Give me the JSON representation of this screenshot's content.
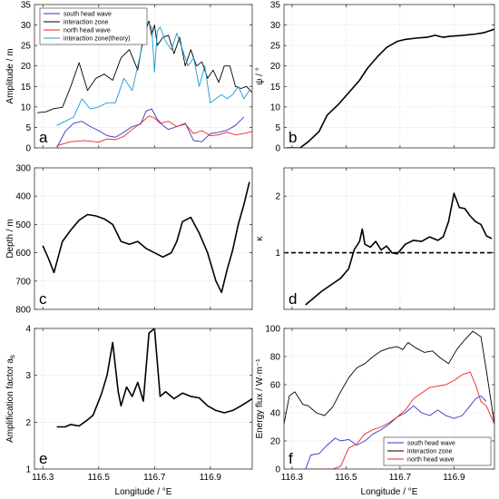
{
  "chart_data": [
    {
      "id": "a",
      "panel_letter": "a",
      "type": "line",
      "ylabel": "Amplitude / m",
      "xlim": [
        116.27,
        117.05
      ],
      "ylim": [
        0,
        35
      ],
      "yticks": [
        0,
        5,
        10,
        15,
        20,
        25,
        30,
        35
      ],
      "xticks": [
        116.3,
        116.5,
        116.7,
        116.9
      ],
      "show_xticklabels": false,
      "grid": true,
      "legend": "top-left",
      "series": [
        {
          "name": "south head wave",
          "color": "#3333cc",
          "x": [
            116.35,
            116.38,
            116.41,
            116.44,
            116.47,
            116.5,
            116.53,
            116.56,
            116.59,
            116.62,
            116.65,
            116.67,
            116.69,
            116.71,
            116.73,
            116.75,
            116.78,
            116.81,
            116.84,
            116.87,
            116.9,
            116.93,
            116.96,
            116.99,
            117.02
          ],
          "y": [
            0,
            4,
            6,
            6.5,
            5.2,
            4.2,
            3.0,
            2.6,
            3.8,
            5.2,
            5.8,
            9.0,
            9.5,
            7.0,
            5.5,
            4.5,
            5.2,
            6.0,
            1.8,
            1.5,
            3.5,
            3.8,
            4.3,
            5.5,
            7.5
          ]
        },
        {
          "name": "interaction zone",
          "color": "#000000",
          "x": [
            116.28,
            116.31,
            116.34,
            116.37,
            116.4,
            116.43,
            116.46,
            116.49,
            116.52,
            116.55,
            116.58,
            116.61,
            116.64,
            116.66,
            116.68,
            116.69,
            116.7,
            116.71,
            116.73,
            116.75,
            116.77,
            116.79,
            116.81,
            116.83,
            116.85,
            116.87,
            116.89,
            116.91,
            116.93,
            116.95,
            116.97,
            116.99,
            117.01,
            117.03,
            117.05
          ],
          "y": [
            8.6,
            8.8,
            9.6,
            9.9,
            15,
            20.8,
            14,
            17,
            18,
            16.5,
            22,
            24,
            19,
            27,
            31,
            27.5,
            30,
            25,
            27,
            27.5,
            23,
            27,
            20,
            24,
            20,
            21,
            17,
            19,
            16,
            20,
            20,
            15,
            14.5,
            15,
            13.5
          ]
        },
        {
          "name": "north head wave",
          "color": "#ee2222",
          "x": [
            116.35,
            116.4,
            116.45,
            116.5,
            116.53,
            116.56,
            116.59,
            116.62,
            116.65,
            116.68,
            116.7,
            116.72,
            116.75,
            116.78,
            116.81,
            116.84,
            116.87,
            116.9,
            116.93,
            116.96,
            116.99,
            117.02,
            117.05
          ],
          "y": [
            0.5,
            1.5,
            1.8,
            1.4,
            2.2,
            2.0,
            2.8,
            4.5,
            6.0,
            7.8,
            7.3,
            6.0,
            6.5,
            5.2,
            5.8,
            3.5,
            4.2,
            3.0,
            3.2,
            3.8,
            3.2,
            3.5,
            4.0
          ]
        },
        {
          "name": "interaction zone(theory)",
          "color": "#1a9ad6",
          "x": [
            116.35,
            116.38,
            116.41,
            116.44,
            116.47,
            116.5,
            116.53,
            116.56,
            116.59,
            116.62,
            116.64,
            116.66,
            116.67,
            116.69,
            116.7,
            116.71,
            116.72,
            116.74,
            116.76,
            116.78,
            116.8,
            116.82,
            116.84,
            116.86,
            116.88,
            116.9,
            116.92,
            116.94,
            116.96,
            116.98,
            117.0,
            117.02,
            117.04
          ],
          "y": [
            5.5,
            6.5,
            7.5,
            12,
            9.5,
            10,
            11,
            11,
            17,
            14,
            20,
            26,
            31,
            29.5,
            18.5,
            28.5,
            29.5,
            26,
            24,
            28,
            24,
            20,
            22,
            15,
            20,
            11,
            12,
            13,
            12,
            13,
            15,
            12,
            14
          ]
        }
      ]
    },
    {
      "id": "b",
      "panel_letter": "b",
      "type": "line",
      "ylabel": "ψ / °",
      "xlim": [
        116.27,
        117.05
      ],
      "ylim": [
        0,
        35
      ],
      "yticks": [
        0,
        5,
        10,
        15,
        20,
        25,
        30,
        35
      ],
      "xticks": [
        116.3,
        116.5,
        116.7,
        116.9
      ],
      "show_xticklabels": false,
      "grid": true,
      "series": [
        {
          "color": "#000000",
          "x": [
            116.28,
            116.33,
            116.36,
            116.4,
            116.43,
            116.47,
            116.51,
            116.55,
            116.58,
            116.62,
            116.65,
            116.69,
            116.72,
            116.76,
            116.8,
            116.83,
            116.86,
            116.89,
            116.92,
            116.95,
            116.98,
            117.01,
            117.05
          ],
          "y": [
            0,
            0,
            1.5,
            4,
            8,
            10.5,
            13.5,
            16.5,
            19.5,
            22.5,
            24.5,
            26,
            26.5,
            26.8,
            27,
            27.5,
            27,
            27.3,
            27.4,
            27.6,
            27.8,
            28.1,
            29
          ]
        }
      ]
    },
    {
      "id": "c",
      "panel_letter": "c",
      "type": "line",
      "ylabel": "Depth / m",
      "xlim": [
        116.27,
        117.05
      ],
      "ylim": [
        800,
        300
      ],
      "yticks": [
        300,
        400,
        500,
        600,
        700,
        800
      ],
      "xticks": [
        116.3,
        116.5,
        116.7,
        116.9
      ],
      "show_xticklabels": false,
      "grid": true,
      "series": [
        {
          "color": "#000000",
          "x": [
            116.3,
            116.32,
            116.34,
            116.37,
            116.4,
            116.43,
            116.46,
            116.49,
            116.52,
            116.55,
            116.58,
            116.61,
            116.64,
            116.67,
            116.7,
            116.73,
            116.76,
            116.78,
            116.8,
            116.83,
            116.86,
            116.89,
            116.92,
            116.94,
            116.96,
            116.98,
            117.0,
            117.02,
            117.04
          ],
          "y": [
            575,
            620,
            670,
            560,
            520,
            485,
            465,
            470,
            480,
            500,
            560,
            570,
            560,
            585,
            600,
            615,
            600,
            560,
            490,
            475,
            530,
            600,
            700,
            740,
            660,
            590,
            500,
            430,
            350
          ]
        }
      ]
    },
    {
      "id": "d",
      "panel_letter": "d",
      "type": "line",
      "ylabel": "κ",
      "xlim": [
        116.27,
        117.05
      ],
      "ylim": [
        0,
        2.5
      ],
      "yticks": [
        1,
        2
      ],
      "xticks": [
        116.3,
        116.5,
        116.7,
        116.9
      ],
      "show_xticklabels": false,
      "grid": true,
      "reference_line": {
        "y": 1,
        "style": "dashed"
      },
      "series": [
        {
          "color": "#000000",
          "x": [
            116.35,
            116.38,
            116.41,
            116.45,
            116.48,
            116.51,
            116.53,
            116.55,
            116.56,
            116.57,
            116.59,
            116.61,
            116.63,
            116.65,
            116.67,
            116.69,
            116.72,
            116.75,
            116.78,
            116.81,
            116.84,
            116.86,
            116.88,
            116.9,
            116.92,
            116.94,
            116.96,
            116.98,
            117.0,
            117.02,
            117.04
          ],
          "y": [
            0.08,
            0.2,
            0.32,
            0.45,
            0.55,
            0.72,
            1.05,
            1.2,
            1.42,
            1.15,
            1.1,
            1.2,
            1.05,
            1.12,
            1.0,
            0.98,
            1.15,
            1.22,
            1.2,
            1.28,
            1.22,
            1.28,
            1.55,
            2.05,
            1.8,
            1.78,
            1.65,
            1.55,
            1.5,
            1.3,
            1.25
          ]
        }
      ]
    },
    {
      "id": "e",
      "panel_letter": "e",
      "type": "line",
      "ylabel": "Amplification factor a",
      "ylabel_subscript": "s",
      "xlabel": "Longitude / °E",
      "xlim": [
        116.27,
        117.05
      ],
      "ylim": [
        1,
        4
      ],
      "yticks": [
        1,
        2,
        3,
        4
      ],
      "xticks": [
        116.3,
        116.5,
        116.7,
        116.9
      ],
      "xticklabels": [
        "116.3",
        "116.5",
        "116.7",
        "116.9"
      ],
      "show_xticklabels": true,
      "grid": true,
      "series": [
        {
          "color": "#000000",
          "x": [
            116.35,
            116.38,
            116.4,
            116.43,
            116.46,
            116.48,
            116.51,
            116.53,
            116.55,
            116.57,
            116.58,
            116.6,
            116.62,
            116.64,
            116.66,
            116.68,
            116.69,
            116.7,
            116.72,
            116.74,
            116.77,
            116.8,
            116.83,
            116.86,
            116.89,
            116.92,
            116.95,
            116.98,
            117.01,
            117.05
          ],
          "y": [
            1.9,
            1.9,
            1.95,
            1.92,
            2.05,
            2.15,
            2.6,
            3.0,
            3.7,
            2.65,
            2.35,
            2.75,
            2.55,
            2.85,
            2.45,
            3.9,
            3.95,
            4.0,
            2.55,
            2.65,
            2.5,
            2.62,
            2.55,
            2.52,
            2.35,
            2.25,
            2.2,
            2.25,
            2.35,
            2.5
          ]
        }
      ]
    },
    {
      "id": "f",
      "panel_letter": "f",
      "type": "line",
      "ylabel": "Energy flux / W·m⁻¹",
      "xlabel": "Longitude / °E",
      "xlim": [
        116.27,
        117.05
      ],
      "ylim": [
        0,
        100
      ],
      "yticks": [
        0,
        20,
        40,
        60,
        80,
        100
      ],
      "xticks": [
        116.3,
        116.5,
        116.7,
        116.9
      ],
      "xticklabels": [
        "116.3",
        "116.5",
        "116.7",
        "116.9"
      ],
      "show_xticklabels": true,
      "grid": true,
      "legend": "bottom-right",
      "series": [
        {
          "name": "south head wave",
          "color": "#3333cc",
          "x": [
            116.35,
            116.37,
            116.4,
            116.43,
            116.46,
            116.48,
            116.51,
            116.54,
            116.57,
            116.6,
            116.63,
            116.66,
            116.69,
            116.72,
            116.75,
            116.78,
            116.81,
            116.84,
            116.87,
            116.9,
            116.93,
            116.96,
            116.98,
            117.0,
            117.02
          ],
          "y": [
            0,
            10,
            11,
            17,
            22,
            20,
            21,
            17,
            20,
            25,
            28,
            32,
            37,
            40,
            45,
            40,
            38,
            42,
            38,
            36,
            38,
            45,
            50,
            52,
            48
          ]
        },
        {
          "name": "interaction zone",
          "color": "#000000",
          "x": [
            116.27,
            116.29,
            116.31,
            116.34,
            116.36,
            116.39,
            116.42,
            116.45,
            116.48,
            116.51,
            116.54,
            116.57,
            116.6,
            116.63,
            116.66,
            116.69,
            116.71,
            116.73,
            116.76,
            116.79,
            116.82,
            116.85,
            116.88,
            116.91,
            116.94,
            116.97,
            117.0,
            117.02,
            117.05
          ],
          "y": [
            32,
            52,
            55,
            46,
            45,
            40,
            38,
            44,
            55,
            65,
            72,
            75,
            80,
            84,
            86,
            87,
            85,
            90,
            86,
            83,
            84,
            79,
            75,
            85,
            92,
            98,
            94,
            70,
            32
          ]
        },
        {
          "name": "north head wave",
          "color": "#ee2222",
          "x": [
            116.35,
            116.4,
            116.45,
            116.48,
            116.51,
            116.54,
            116.57,
            116.6,
            116.63,
            116.66,
            116.69,
            116.72,
            116.75,
            116.78,
            116.81,
            116.84,
            116.87,
            116.9,
            116.93,
            116.96,
            116.98,
            117.0,
            117.02,
            117.05
          ],
          "y": [
            0,
            0,
            0,
            2,
            15,
            18,
            25,
            28,
            30,
            33,
            37,
            42,
            50,
            54,
            58,
            59,
            60,
            63,
            67,
            69,
            60,
            48,
            45,
            32
          ]
        }
      ]
    }
  ]
}
